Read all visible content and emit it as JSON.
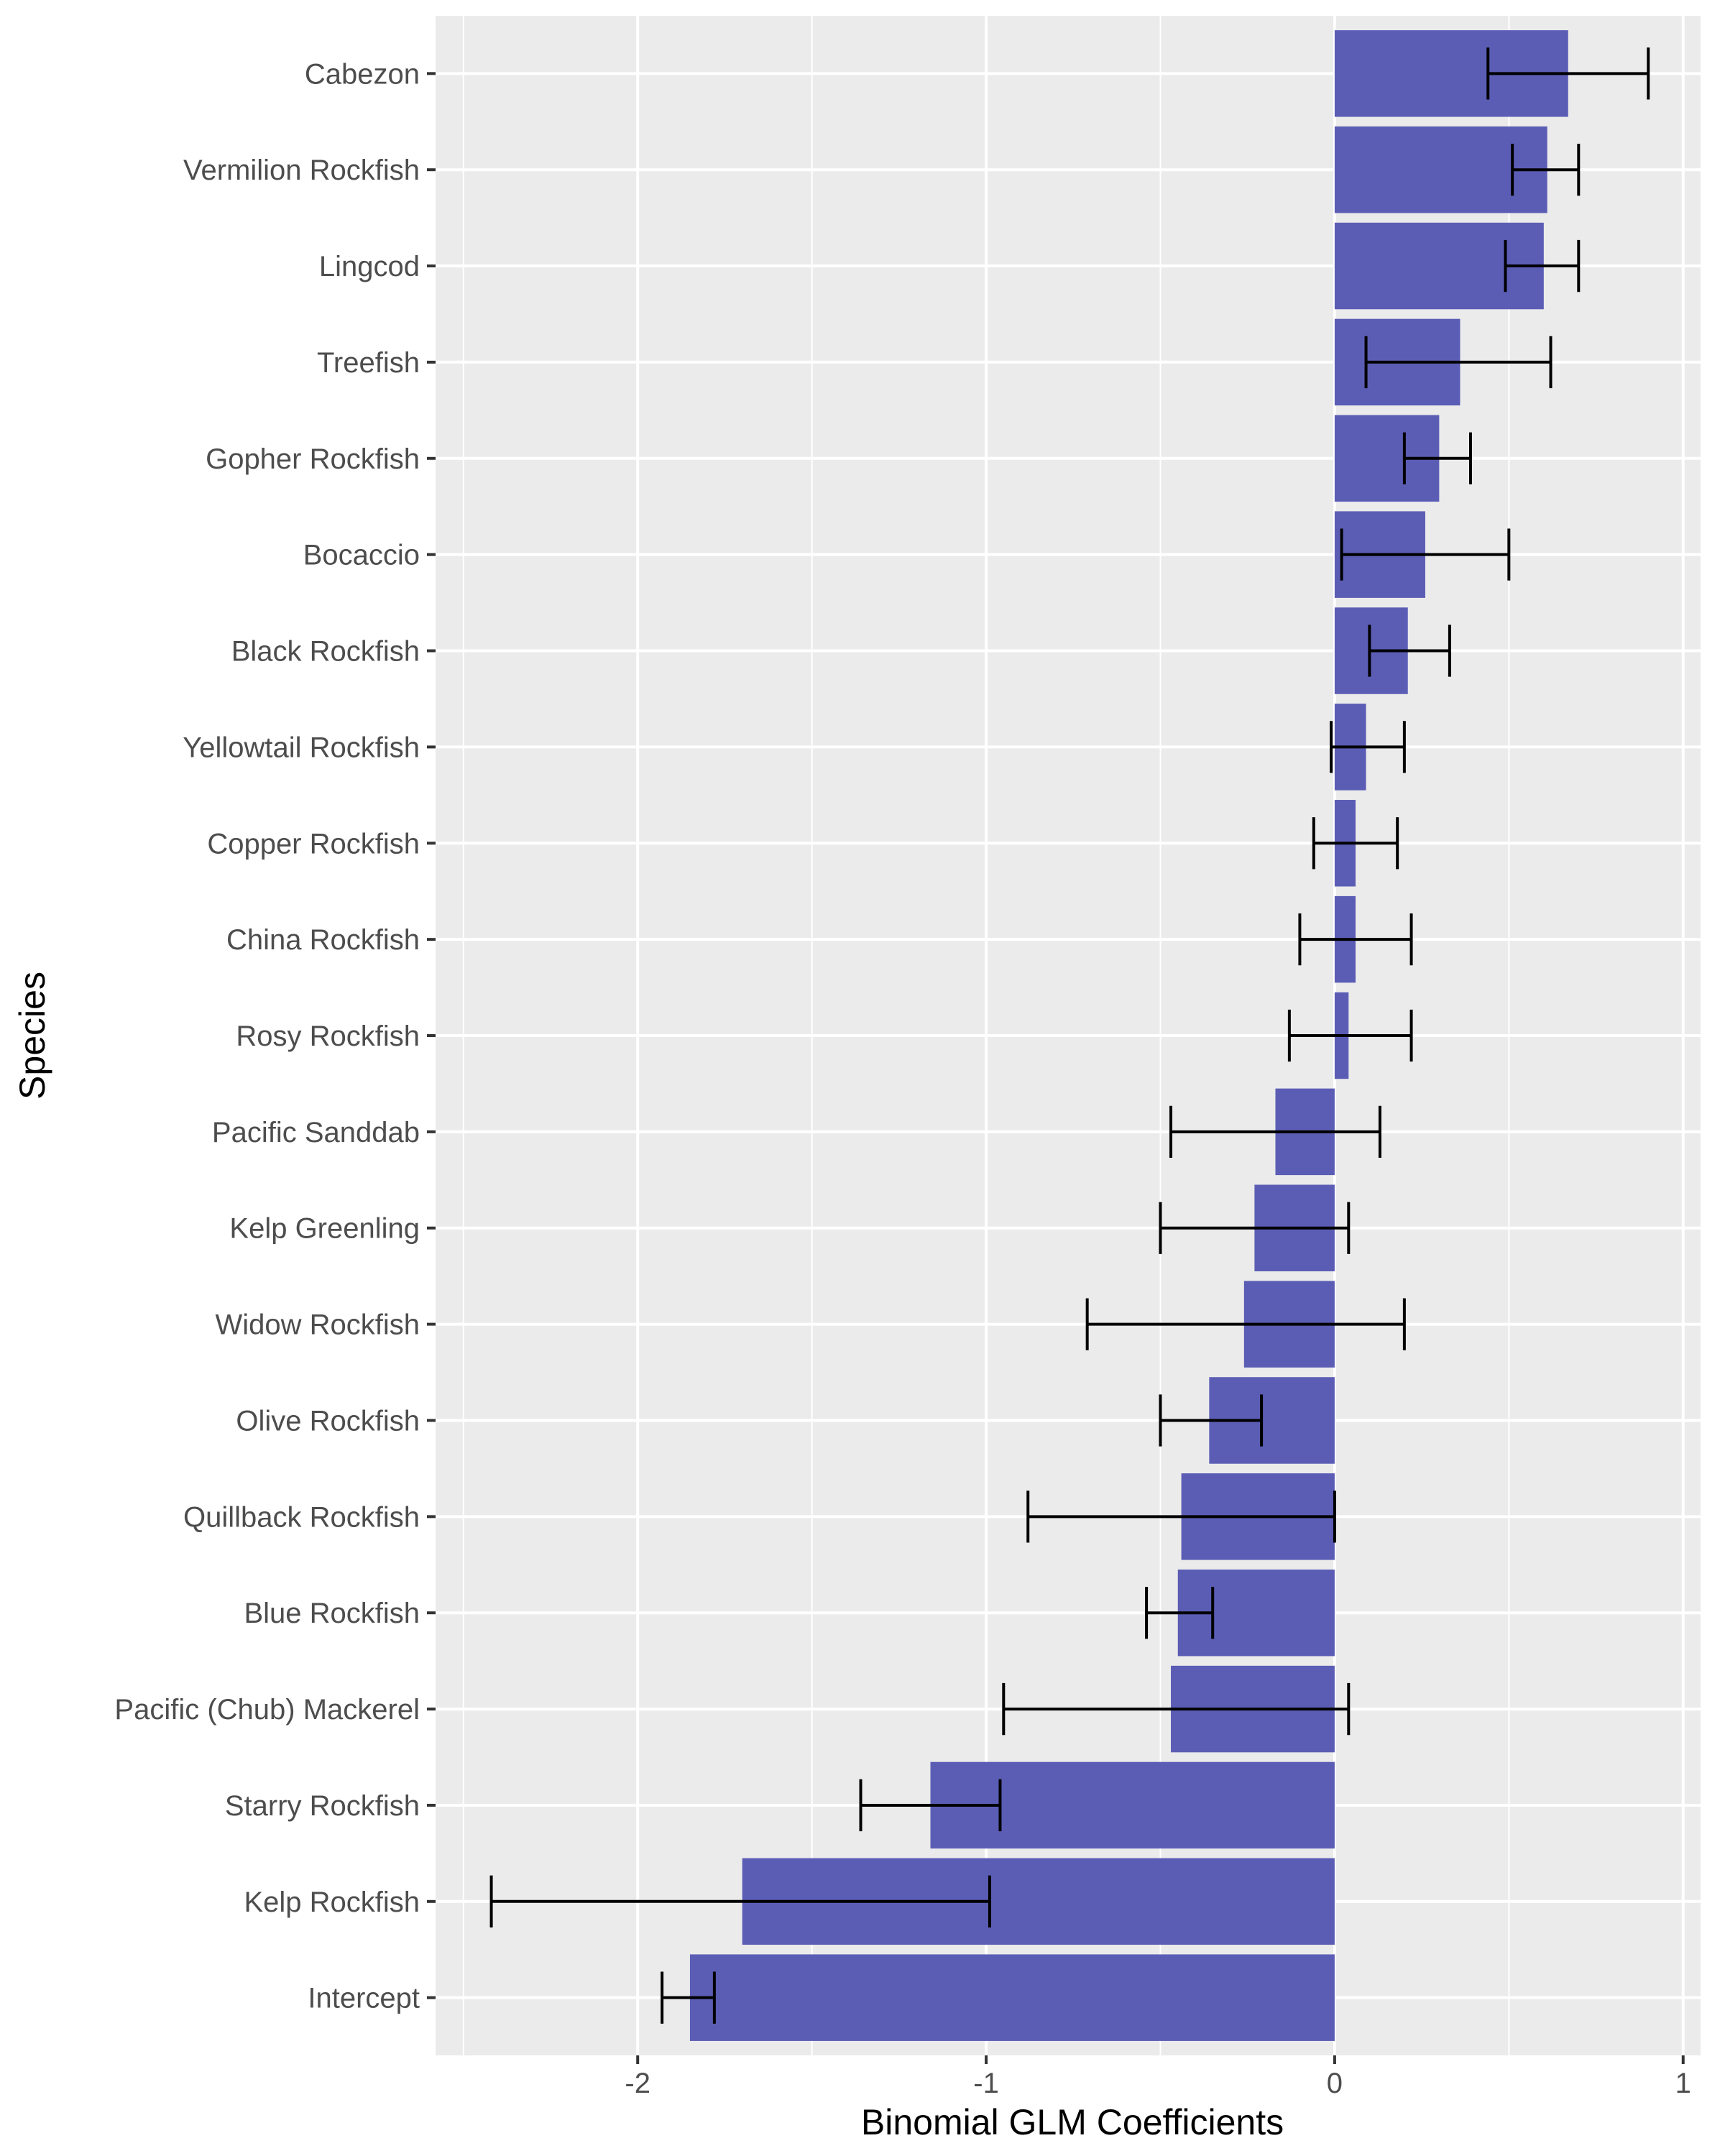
{
  "chart_data": {
    "type": "bar",
    "orientation": "horizontal",
    "xlabel": "Binomial GLM Coefficients",
    "ylabel": "Species",
    "xlim": [
      -2.58,
      1.05
    ],
    "x_ticks": [
      -2,
      -1,
      0,
      1
    ],
    "x_tick_labels": [
      "-2",
      "-1",
      "0",
      "1"
    ],
    "grid": true,
    "bar_color": "#5b5db5",
    "panel_color": "#ebebeb",
    "categories": [
      "Cabezon",
      "Vermilion Rockfish",
      "Lingcod",
      "Treefish",
      "Gopher Rockfish",
      "Bocaccio",
      "Black Rockfish",
      "Yellowtail Rockfish",
      "Copper Rockfish",
      "China Rockfish",
      "Rosy Rockfish",
      "Pacific Sanddab",
      "Kelp Greenling",
      "Widow Rockfish",
      "Olive Rockfish",
      "Quillback Rockfish",
      "Blue Rockfish",
      "Pacific (Chub) Mackerel",
      "Starry Rockfish",
      "Kelp Rockfish",
      "Intercept"
    ],
    "values": [
      0.67,
      0.61,
      0.6,
      0.36,
      0.3,
      0.26,
      0.21,
      0.09,
      0.06,
      0.06,
      0.04,
      -0.17,
      -0.23,
      -0.26,
      -0.36,
      -0.44,
      -0.45,
      -0.47,
      -1.16,
      -1.7,
      -1.85
    ],
    "error_lower": [
      0.44,
      0.51,
      0.49,
      0.09,
      0.2,
      0.02,
      0.1,
      -0.01,
      -0.06,
      -0.1,
      -0.13,
      -0.47,
      -0.5,
      -0.71,
      -0.5,
      -0.88,
      -0.54,
      -0.95,
      -1.36,
      -2.42,
      -1.93
    ],
    "error_upper": [
      0.9,
      0.7,
      0.7,
      0.62,
      0.39,
      0.5,
      0.33,
      0.2,
      0.18,
      0.22,
      0.22,
      0.13,
      0.04,
      0.2,
      -0.21,
      0.0,
      -0.35,
      0.04,
      -0.96,
      -0.99,
      -1.78
    ]
  }
}
